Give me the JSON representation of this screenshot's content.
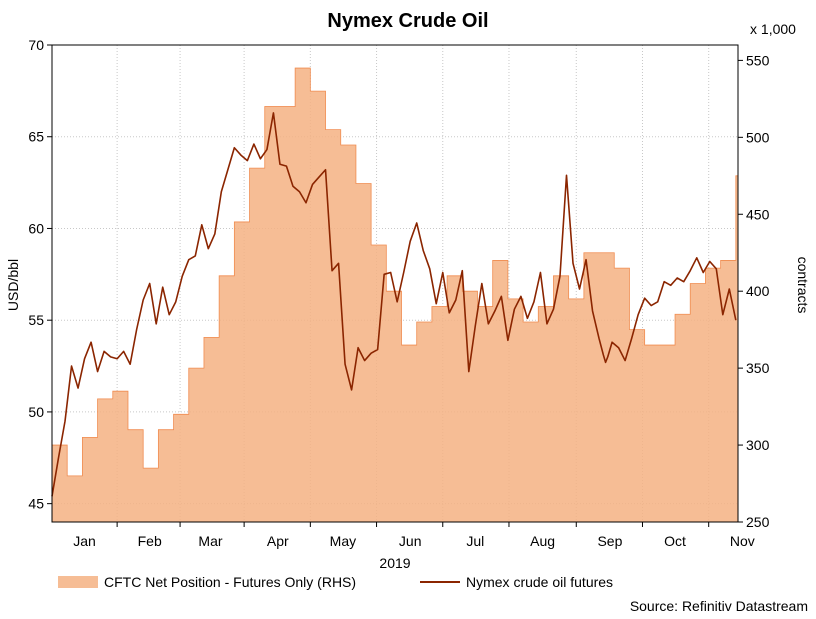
{
  "chart_data": {
    "type": "line",
    "title": "Nymex Crude Oil",
    "xlabel": "2019",
    "ylabel": "USD/bbl",
    "y2label": "contracts",
    "y2_multiplier_label": "x 1,000",
    "source": "Source: Refinitiv Datastream",
    "grid": true,
    "legend_position": "bottom-left",
    "x_range": [
      0,
      316
    ],
    "ylim": [
      44,
      70
    ],
    "y2lim": [
      250,
      560
    ],
    "y_ticks": [
      45,
      50,
      55,
      60,
      65,
      70
    ],
    "y2_ticks": [
      250,
      300,
      350,
      400,
      450,
      500,
      550
    ],
    "month_ticks": [
      {
        "label": "Jan",
        "day": 15
      },
      {
        "label": "Feb",
        "day": 45
      },
      {
        "label": "Mar",
        "day": 73
      },
      {
        "label": "Apr",
        "day": 104
      },
      {
        "label": "May",
        "day": 134
      },
      {
        "label": "Jun",
        "day": 165
      },
      {
        "label": "Jul",
        "day": 195
      },
      {
        "label": "Aug",
        "day": 226
      },
      {
        "label": "Sep",
        "day": 257
      },
      {
        "label": "Oct",
        "day": 287
      },
      {
        "label": "Nov",
        "day": 318
      }
    ],
    "series": [
      {
        "name": "CFTC Net Position - Futures Only (RHS)",
        "kind": "area",
        "axis": "right",
        "color": "#f4b183",
        "x": [
          0,
          7,
          14,
          21,
          28,
          35,
          42,
          49,
          56,
          63,
          70,
          77,
          84,
          91,
          98,
          105,
          112,
          119,
          126,
          133,
          140,
          147,
          154,
          161,
          168,
          175,
          182,
          189,
          196,
          203,
          210,
          217,
          224,
          231,
          238,
          245,
          252,
          259,
          266,
          273,
          280,
          287,
          294,
          301,
          308,
          315
        ],
        "values": [
          300,
          280,
          305,
          330,
          335,
          310,
          285,
          310,
          320,
          350,
          370,
          410,
          445,
          480,
          520,
          520,
          545,
          530,
          505,
          495,
          470,
          430,
          400,
          365,
          380,
          390,
          410,
          400,
          390,
          420,
          395,
          380,
          390,
          410,
          395,
          425,
          425,
          415,
          375,
          365,
          365,
          385,
          405,
          415,
          420,
          475
        ]
      },
      {
        "name": "Nymex crude oil futures",
        "kind": "line",
        "axis": "left",
        "color": "#8b2500",
        "x": [
          0,
          3,
          6,
          9,
          12,
          15,
          18,
          21,
          24,
          27,
          30,
          33,
          36,
          39,
          42,
          45,
          48,
          51,
          54,
          57,
          60,
          63,
          66,
          69,
          72,
          75,
          78,
          81,
          84,
          87,
          90,
          93,
          96,
          99,
          102,
          105,
          108,
          111,
          114,
          117,
          120,
          123,
          126,
          129,
          132,
          135,
          138,
          141,
          144,
          147,
          150,
          153,
          156,
          159,
          162,
          165,
          168,
          171,
          174,
          177,
          180,
          183,
          186,
          189,
          192,
          195,
          198,
          201,
          204,
          207,
          210,
          213,
          216,
          219,
          222,
          225,
          228,
          231,
          234,
          237,
          240,
          243,
          246,
          249,
          252,
          254,
          255,
          256,
          258,
          261,
          264,
          267,
          270,
          273,
          276,
          279,
          282,
          285,
          288,
          291,
          294,
          297,
          300,
          303,
          306,
          309,
          312,
          315
        ],
        "values": [
          45.4,
          47.5,
          49.5,
          52.5,
          51.3,
          52.9,
          53.8,
          52.2,
          53.3,
          53.0,
          52.9,
          53.3,
          52.6,
          54.5,
          56.1,
          57.0,
          54.8,
          56.8,
          55.3,
          56.0,
          57.4,
          58.3,
          58.5,
          60.2,
          58.9,
          59.7,
          62.0,
          63.2,
          64.4,
          64.0,
          63.7,
          64.6,
          63.8,
          64.3,
          66.3,
          63.5,
          63.4,
          62.3,
          62.0,
          61.4,
          62.4,
          62.8,
          63.2,
          57.7,
          58.1,
          52.6,
          51.2,
          53.5,
          52.8,
          53.2,
          53.4,
          57.5,
          57.6,
          56.0,
          57.6,
          59.3,
          60.3,
          58.8,
          57.8,
          55.9,
          57.6,
          55.4,
          56.1,
          57.7,
          52.2,
          54.7,
          57.0,
          54.8,
          55.5,
          56.3,
          53.9,
          55.6,
          56.3,
          55.1,
          56.0,
          57.6,
          54.8,
          55.6,
          57.4,
          62.9,
          58.1,
          56.7,
          58.3,
          55.5,
          54.0,
          53.1,
          52.7,
          53.0,
          53.8,
          53.5,
          52.8,
          54.0,
          55.3,
          56.2,
          55.8,
          56.0,
          57.1,
          56.9,
          57.3,
          57.1,
          57.7,
          58.4,
          57.6,
          58.2,
          57.8,
          55.3,
          56.7,
          55.0
        ]
      }
    ]
  }
}
